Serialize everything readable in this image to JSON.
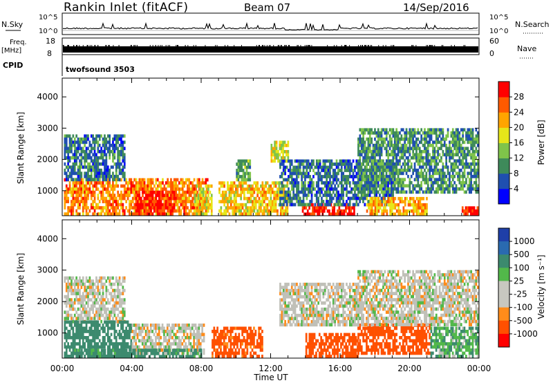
{
  "header": {
    "title": "Rankin Inlet (fitACF)",
    "beam": "Beam 07",
    "date": "14/Sep/2016"
  },
  "panels": {
    "nsky": {
      "left_label": "N.Sky",
      "right_label": "N.Search",
      "left_ticks": [
        "10^5",
        "10^0"
      ],
      "right_ticks": [
        "10^5",
        "10^0"
      ]
    },
    "freq": {
      "left_label_1": "Freq.",
      "left_label_2": "[MHz]",
      "right_label": "Nave",
      "left_ticks": [
        "18",
        "8"
      ],
      "right_ticks": [
        "60",
        "0"
      ]
    },
    "cpid": {
      "label": "CPID",
      "value": "twofsound 3503"
    }
  },
  "colors": {
    "power_scale": [
      "#0000ff",
      "#1f4fb0",
      "#3e8a5a",
      "#7fc44a",
      "#e6e61a",
      "#ffa500",
      "#ff5a00",
      "#ff0000"
    ],
    "velocity_scale": [
      "#ff0000",
      "#ff5000",
      "#ff8c1a",
      "#c8c8c0",
      "#c8c8c0",
      "#52b84a",
      "#3c8a6e",
      "#2a6ab0",
      "#1f3fa8"
    ],
    "ground_scatter_grey": "#c0c0b8"
  },
  "chart_data": [
    {
      "type": "heatmap",
      "name": "power",
      "xlabel": "Time UT",
      "ylabel": "Slant Range [km]",
      "colorbar_label": "Power [dB]",
      "x_ticks": [
        "00:00",
        "04:00",
        "08:00",
        "12:00",
        "16:00",
        "20:00",
        "00:00"
      ],
      "y_ticks": [
        1000,
        2000,
        3000,
        4000
      ],
      "ylim": [
        200,
        4600
      ],
      "xlim_hours": [
        0,
        24
      ],
      "colorbar_ticks": [
        4,
        8,
        12,
        16,
        20,
        24,
        28
      ],
      "colorbar_range": [
        0,
        32
      ],
      "echo_regions": [
        {
          "t_start": 0.1,
          "t_end": 8.4,
          "r_min": 200,
          "r_max": 1400,
          "level": 24
        },
        {
          "t_start": 4.2,
          "t_end": 6.4,
          "r_min": 200,
          "r_max": 1000,
          "level": 30
        },
        {
          "t_start": 0.1,
          "t_end": 3.6,
          "r_min": 1400,
          "r_max": 2800,
          "level": 8
        },
        {
          "t_start": 7.6,
          "t_end": 8.6,
          "r_min": 200,
          "r_max": 1200,
          "level": 18
        },
        {
          "t_start": 9.0,
          "t_end": 13.0,
          "r_min": 200,
          "r_max": 1300,
          "level": 20
        },
        {
          "t_start": 13.8,
          "t_end": 16.8,
          "r_min": 200,
          "r_max": 600,
          "level": 30
        },
        {
          "t_start": 12.5,
          "t_end": 19.0,
          "r_min": 600,
          "r_max": 2000,
          "level": 8
        },
        {
          "t_start": 17.0,
          "t_end": 24.0,
          "r_min": 1000,
          "r_max": 3000,
          "level": 10
        },
        {
          "t_start": 17.5,
          "t_end": 21.0,
          "r_min": 200,
          "r_max": 800,
          "level": 22
        },
        {
          "t_start": 23.0,
          "t_end": 24.0,
          "r_min": 200,
          "r_max": 500,
          "level": 30
        },
        {
          "t_start": 10.0,
          "t_end": 10.8,
          "r_min": 1400,
          "r_max": 2000,
          "level": 12
        },
        {
          "t_start": 12.0,
          "t_end": 13.0,
          "r_min": 2000,
          "r_max": 2600,
          "level": 18
        }
      ]
    },
    {
      "type": "heatmap",
      "name": "velocity",
      "xlabel": "Time UT",
      "ylabel": "Slant Range [km]",
      "colorbar_label": "Velocity [m s⁻¹]",
      "x_ticks": [
        "00:00",
        "04:00",
        "08:00",
        "12:00",
        "16:00",
        "20:00",
        "00:00"
      ],
      "y_ticks": [
        1000,
        2000,
        3000,
        4000
      ],
      "ylim": [
        200,
        4600
      ],
      "xlim_hours": [
        0,
        24
      ],
      "colorbar_ticks": [
        1000,
        500,
        100,
        25,
        -25,
        -100,
        -500,
        -1000
      ],
      "echo_regions": [
        {
          "t_start": 0.1,
          "t_end": 3.6,
          "r_min": 1400,
          "r_max": 2800,
          "level": 0
        },
        {
          "t_start": 0.1,
          "t_end": 4.0,
          "r_min": 200,
          "r_max": 1400,
          "level": 200
        },
        {
          "t_start": 4.0,
          "t_end": 8.2,
          "r_min": 400,
          "r_max": 1300,
          "level": 0
        },
        {
          "t_start": 0.5,
          "t_end": 8.0,
          "r_min": 200,
          "r_max": 500,
          "level": 150
        },
        {
          "t_start": 8.6,
          "t_end": 11.5,
          "r_min": 200,
          "r_max": 1200,
          "level": -150
        },
        {
          "t_start": 12.5,
          "t_end": 17.0,
          "r_min": 1300,
          "r_max": 2600,
          "level": 0
        },
        {
          "t_start": 14.0,
          "t_end": 17.0,
          "r_min": 200,
          "r_max": 1000,
          "level": -300
        },
        {
          "t_start": 17.0,
          "t_end": 21.2,
          "r_min": 400,
          "r_max": 1300,
          "level": -400
        },
        {
          "t_start": 17.0,
          "t_end": 24.0,
          "r_min": 1300,
          "r_max": 3000,
          "level": 0
        },
        {
          "t_start": 21.2,
          "t_end": 24.0,
          "r_min": 200,
          "r_max": 1200,
          "level": 80
        }
      ]
    }
  ],
  "axes": {
    "time_label": "Time UT",
    "range_label": "Slant Range [km]",
    "power_label": "Power [dB]",
    "velocity_label": "Velocity [m s⁻¹]"
  }
}
